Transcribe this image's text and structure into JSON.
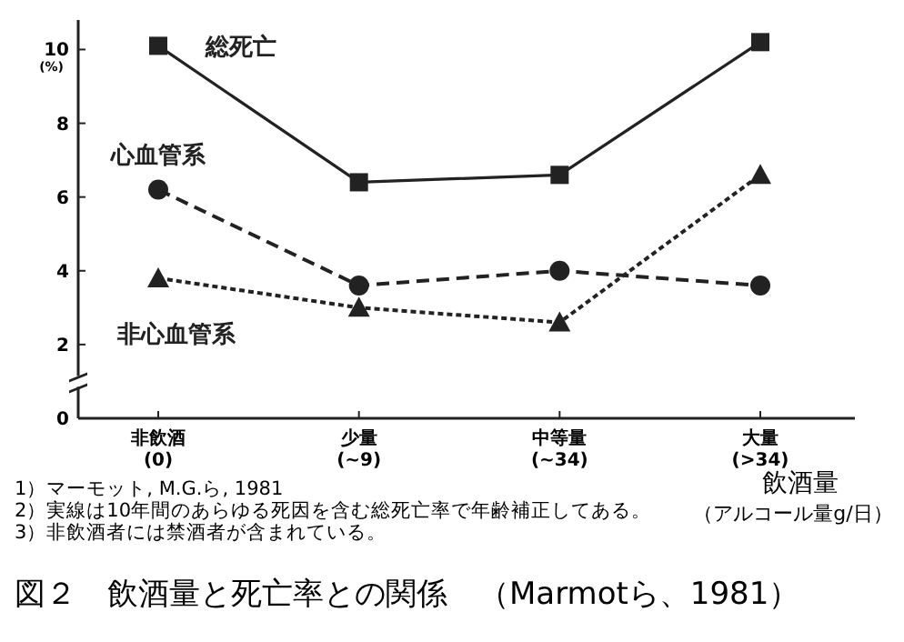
{
  "chart_data": {
    "type": "line",
    "title": "図２　飲酒量と死亡率との関係　（Marmotら、1981）",
    "xlabel": "飲酒量",
    "ylabel": "(%)",
    "categories": [
      "非飲酒\n(0)",
      "少量\n(~9)",
      "中等量\n(~34)",
      "大量\n(>34)"
    ],
    "ylim": [
      0,
      10.8
    ],
    "yticks": [
      0,
      2,
      4,
      6,
      8,
      10
    ],
    "grid": false,
    "legend": false,
    "series": [
      {
        "name": "総死亡",
        "color": "#222222",
        "marker": "square",
        "line_style": "solid",
        "values": [
          10.1,
          6.4,
          6.6,
          10.2
        ]
      },
      {
        "name": "心血管系",
        "color": "#222222",
        "marker": "circle",
        "line_style": "dashed",
        "values": [
          6.2,
          3.6,
          4.0,
          3.6
        ]
      },
      {
        "name": "非心血管系",
        "color": "#222222",
        "marker": "triangle",
        "line_style": "dotted",
        "values": [
          3.8,
          3.0,
          2.6,
          6.6
        ]
      }
    ],
    "annotations": [
      "1）マーモット, M.G.ら, 1981",
      "2）実線は10年間のあらゆる死因を含む総死亡率で年齢補正してある。",
      "3）非飲酒者には禁酒者が含まれている。",
      "（アルコール量g/日）"
    ]
  }
}
